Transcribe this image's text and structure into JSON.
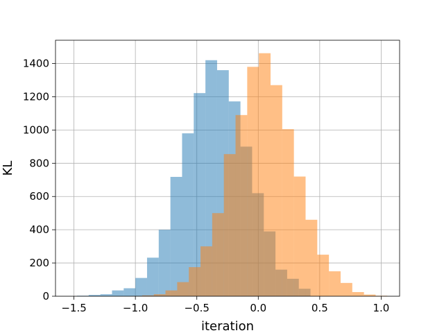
{
  "chart_data": {
    "type": "bar",
    "subtype": "overlapping-histogram",
    "title": "",
    "xlabel": "iteration",
    "ylabel": "KL",
    "xlim": [
      -1.65,
      1.15
    ],
    "ylim": [
      0,
      1540
    ],
    "grid": true,
    "legend": "none",
    "xticks": [
      -1.5,
      -1.0,
      -0.5,
      0.0,
      0.5,
      1.0
    ],
    "xtick_labels": [
      "−1.5",
      "−1.0",
      "−0.5",
      "0.0",
      "0.5",
      "1.0"
    ],
    "yticks": [
      0,
      200,
      400,
      600,
      800,
      1000,
      1200,
      1400
    ],
    "ytick_labels": [
      "0",
      "200",
      "400",
      "600",
      "800",
      "1000",
      "1200",
      "1400"
    ],
    "series": [
      {
        "color": "#1f77b4",
        "opacity": 0.5,
        "bin_edges": [
          -1.475,
          -1.38,
          -1.285,
          -1.19,
          -1.095,
          -1.0,
          -0.905,
          -0.81,
          -0.715,
          -0.62,
          -0.525,
          -0.43,
          -0.335,
          -0.24,
          -0.145,
          -0.05,
          0.045,
          0.14,
          0.235,
          0.33,
          0.425
        ],
        "counts": [
          3,
          8,
          12,
          35,
          48,
          110,
          232,
          400,
          718,
          980,
          1222,
          1420,
          1360,
          1172,
          900,
          620,
          390,
          160,
          105,
          45
        ]
      },
      {
        "color": "#ff7f0e",
        "opacity": 0.5,
        "bin_edges": [
          -1.04,
          -0.945,
          -0.85,
          -0.755,
          -0.66,
          -0.565,
          -0.47,
          -0.375,
          -0.28,
          -0.185,
          -0.09,
          0.005,
          0.1,
          0.195,
          0.29,
          0.385,
          0.48,
          0.575,
          0.67,
          0.765,
          0.86,
          0.955,
          1.05
        ],
        "counts": [
          2,
          5,
          12,
          35,
          85,
          175,
          300,
          500,
          855,
          1090,
          1380,
          1462,
          1270,
          1005,
          720,
          460,
          250,
          150,
          80,
          25,
          10,
          3
        ]
      }
    ]
  }
}
